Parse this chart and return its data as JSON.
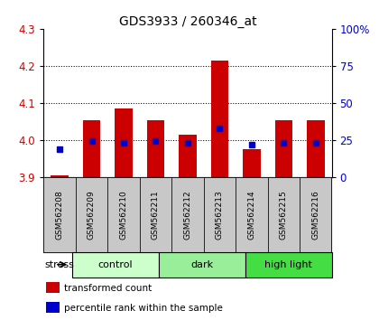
{
  "title": "GDS3933 / 260346_at",
  "samples": [
    "GSM562208",
    "GSM562209",
    "GSM562210",
    "GSM562211",
    "GSM562212",
    "GSM562213",
    "GSM562214",
    "GSM562215",
    "GSM562216"
  ],
  "bar_values": [
    3.905,
    4.055,
    4.085,
    4.055,
    4.015,
    4.215,
    3.975,
    4.055,
    4.055
  ],
  "blue_values": [
    3.975,
    3.999,
    3.993,
    3.999,
    3.994,
    4.033,
    3.989,
    3.994,
    3.994
  ],
  "bar_bottom": 3.9,
  "ylim_left": [
    3.9,
    4.3
  ],
  "ylim_right": [
    0,
    100
  ],
  "yticks_left": [
    3.9,
    4.0,
    4.1,
    4.2,
    4.3
  ],
  "yticks_right": [
    0,
    25,
    50,
    75,
    100
  ],
  "ytick_labels_right": [
    "0",
    "25",
    "50",
    "75",
    "100%"
  ],
  "bar_color": "#cc0000",
  "blue_color": "#0000cc",
  "groups": [
    {
      "label": "control",
      "start": 0,
      "end": 3,
      "color": "#ccffcc"
    },
    {
      "label": "dark",
      "start": 3,
      "end": 6,
      "color": "#99ee99"
    },
    {
      "label": "high light",
      "start": 6,
      "end": 9,
      "color": "#44dd44"
    }
  ],
  "stress_label": "stress",
  "legend_items": [
    {
      "color": "#cc0000",
      "label": "transformed count"
    },
    {
      "color": "#0000cc",
      "label": "percentile rank within the sample"
    }
  ],
  "tick_label_color_left": "#cc0000",
  "tick_label_color_right": "#0000cc",
  "grid_dotted_at": [
    4.0,
    4.1,
    4.2
  ],
  "box_color": "#c8c8c8"
}
